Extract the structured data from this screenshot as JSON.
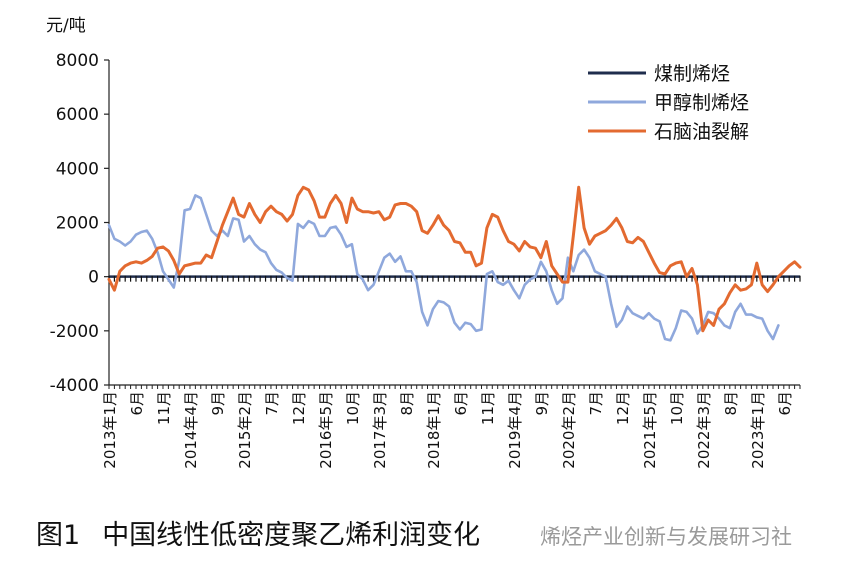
{
  "chart_data": {
    "type": "line",
    "unit_label": "元/吨",
    "ylim": [
      -4000,
      8000
    ],
    "y_ticks": [
      "8000",
      "6000",
      "4000",
      "2000",
      "0",
      "-2000",
      "-4000"
    ],
    "y_tick_values": [
      8000,
      6000,
      4000,
      2000,
      0,
      -2000,
      -4000
    ],
    "x_range_months": [
      0,
      128
    ],
    "x_ticks": [
      {
        "m": 0,
        "label": "2013年1月"
      },
      {
        "m": 5,
        "label": "6月"
      },
      {
        "m": 10,
        "label": "11月"
      },
      {
        "m": 15,
        "label": "2014年4月"
      },
      {
        "m": 20,
        "label": "9月"
      },
      {
        "m": 25,
        "label": "2015年2月"
      },
      {
        "m": 30,
        "label": "7月"
      },
      {
        "m": 35,
        "label": "12月"
      },
      {
        "m": 40,
        "label": "2016年5月"
      },
      {
        "m": 45,
        "label": "10月"
      },
      {
        "m": 50,
        "label": "2017年3月"
      },
      {
        "m": 55,
        "label": "8月"
      },
      {
        "m": 60,
        "label": "2018年1月"
      },
      {
        "m": 65,
        "label": "6月"
      },
      {
        "m": 70,
        "label": "11月"
      },
      {
        "m": 75,
        "label": "2019年4月"
      },
      {
        "m": 80,
        "label": "9月"
      },
      {
        "m": 85,
        "label": "2020年2月"
      },
      {
        "m": 90,
        "label": "7月"
      },
      {
        "m": 95,
        "label": "12月"
      },
      {
        "m": 100,
        "label": "2021年5月"
      },
      {
        "m": 105,
        "label": "10月"
      },
      {
        "m": 110,
        "label": "2022年3月"
      },
      {
        "m": 115,
        "label": "8月"
      },
      {
        "m": 120,
        "label": "2023年1月"
      },
      {
        "m": 125,
        "label": "6月"
      }
    ],
    "legend_position": "top-right",
    "series": [
      {
        "name": "煤制烯烃",
        "color": "#1f2d4d",
        "points": [
          [
            0,
            0
          ],
          [
            128,
            0
          ]
        ]
      },
      {
        "name": "甲醇制烯烃",
        "color": "#8fa8dc",
        "points": [
          [
            0,
            1900
          ],
          [
            1,
            1400
          ],
          [
            2,
            1300
          ],
          [
            3,
            1150
          ],
          [
            4,
            1300
          ],
          [
            5,
            1550
          ],
          [
            6,
            1650
          ],
          [
            7,
            1700
          ],
          [
            8,
            1400
          ],
          [
            9,
            900
          ],
          [
            10,
            200
          ],
          [
            11,
            -100
          ],
          [
            12,
            -400
          ],
          [
            13,
            600
          ],
          [
            14,
            2450
          ],
          [
            15,
            2500
          ],
          [
            16,
            3000
          ],
          [
            17,
            2900
          ],
          [
            18,
            2300
          ],
          [
            19,
            1700
          ],
          [
            20,
            1500
          ],
          [
            21,
            1700
          ],
          [
            22,
            1500
          ],
          [
            23,
            2150
          ],
          [
            24,
            2100
          ],
          [
            25,
            1300
          ],
          [
            26,
            1500
          ],
          [
            27,
            1200
          ],
          [
            28,
            1000
          ],
          [
            29,
            900
          ],
          [
            30,
            500
          ],
          [
            31,
            250
          ],
          [
            32,
            150
          ],
          [
            33,
            -50
          ],
          [
            34,
            -150
          ],
          [
            35,
            1950
          ],
          [
            36,
            1800
          ],
          [
            37,
            2050
          ],
          [
            38,
            1950
          ],
          [
            39,
            1500
          ],
          [
            40,
            1500
          ],
          [
            41,
            1800
          ],
          [
            42,
            1850
          ],
          [
            43,
            1550
          ],
          [
            44,
            1100
          ],
          [
            45,
            1200
          ],
          [
            46,
            100
          ],
          [
            47,
            -100
          ],
          [
            48,
            -500
          ],
          [
            49,
            -300
          ],
          [
            50,
            200
          ],
          [
            51,
            700
          ],
          [
            52,
            850
          ],
          [
            53,
            550
          ],
          [
            54,
            750
          ],
          [
            55,
            200
          ],
          [
            56,
            200
          ],
          [
            57,
            -200
          ],
          [
            58,
            -1300
          ],
          [
            59,
            -1800
          ],
          [
            60,
            -1200
          ],
          [
            61,
            -900
          ],
          [
            62,
            -950
          ],
          [
            63,
            -1100
          ],
          [
            64,
            -1700
          ],
          [
            65,
            -1950
          ],
          [
            66,
            -1700
          ],
          [
            67,
            -1750
          ],
          [
            68,
            -2000
          ],
          [
            69,
            -1950
          ],
          [
            70,
            100
          ],
          [
            71,
            200
          ],
          [
            72,
            -200
          ],
          [
            73,
            -300
          ],
          [
            74,
            -150
          ],
          [
            75,
            -500
          ],
          [
            76,
            -800
          ],
          [
            77,
            -300
          ],
          [
            78,
            -100
          ],
          [
            79,
            0
          ],
          [
            80,
            550
          ],
          [
            81,
            200
          ],
          [
            82,
            -500
          ],
          [
            83,
            -1000
          ],
          [
            84,
            -800
          ],
          [
            85,
            700
          ],
          [
            86,
            200
          ],
          [
            87,
            800
          ],
          [
            88,
            1000
          ],
          [
            89,
            700
          ],
          [
            90,
            200
          ],
          [
            91,
            100
          ],
          [
            92,
            0
          ],
          [
            93,
            -1000
          ],
          [
            94,
            -1850
          ],
          [
            95,
            -1600
          ],
          [
            96,
            -1100
          ],
          [
            97,
            -1350
          ],
          [
            98,
            -1450
          ],
          [
            99,
            -1550
          ],
          [
            100,
            -1350
          ],
          [
            101,
            -1550
          ],
          [
            102,
            -1650
          ],
          [
            103,
            -2300
          ],
          [
            104,
            -2350
          ],
          [
            105,
            -1900
          ],
          [
            106,
            -1250
          ],
          [
            107,
            -1300
          ],
          [
            108,
            -1550
          ],
          [
            109,
            -2100
          ],
          [
            110,
            -1800
          ],
          [
            111,
            -1300
          ],
          [
            112,
            -1350
          ],
          [
            113,
            -1550
          ],
          [
            114,
            -1800
          ],
          [
            115,
            -1900
          ],
          [
            116,
            -1300
          ],
          [
            117,
            -1000
          ],
          [
            118,
            -1400
          ],
          [
            119,
            -1400
          ],
          [
            120,
            -1500
          ],
          [
            121,
            -1550
          ],
          [
            122,
            -2000
          ],
          [
            123,
            -2300
          ],
          [
            124,
            -1800
          ]
        ]
      },
      {
        "name": "石脑油裂解",
        "color": "#e36a30",
        "points": [
          [
            0,
            -100
          ],
          [
            1,
            -500
          ],
          [
            2,
            200
          ],
          [
            3,
            400
          ],
          [
            4,
            500
          ],
          [
            5,
            550
          ],
          [
            6,
            500
          ],
          [
            7,
            600
          ],
          [
            8,
            750
          ],
          [
            9,
            1050
          ],
          [
            10,
            1100
          ],
          [
            11,
            950
          ],
          [
            12,
            600
          ],
          [
            13,
            100
          ],
          [
            14,
            400
          ],
          [
            15,
            450
          ],
          [
            16,
            500
          ],
          [
            17,
            500
          ],
          [
            18,
            800
          ],
          [
            19,
            700
          ],
          [
            20,
            1300
          ],
          [
            21,
            1900
          ],
          [
            22,
            2400
          ],
          [
            23,
            2900
          ],
          [
            24,
            2300
          ],
          [
            25,
            2200
          ],
          [
            26,
            2700
          ],
          [
            27,
            2300
          ],
          [
            28,
            2000
          ],
          [
            29,
            2400
          ],
          [
            30,
            2600
          ],
          [
            31,
            2400
          ],
          [
            32,
            2300
          ],
          [
            33,
            2050
          ],
          [
            34,
            2300
          ],
          [
            35,
            3000
          ],
          [
            36,
            3300
          ],
          [
            37,
            3200
          ],
          [
            38,
            2800
          ],
          [
            39,
            2200
          ],
          [
            40,
            2200
          ],
          [
            41,
            2700
          ],
          [
            42,
            3000
          ],
          [
            43,
            2700
          ],
          [
            44,
            2000
          ],
          [
            45,
            2900
          ],
          [
            46,
            2500
          ],
          [
            47,
            2400
          ],
          [
            48,
            2400
          ],
          [
            49,
            2350
          ],
          [
            50,
            2400
          ],
          [
            51,
            2100
          ],
          [
            52,
            2200
          ],
          [
            53,
            2650
          ],
          [
            54,
            2700
          ],
          [
            55,
            2700
          ],
          [
            56,
            2600
          ],
          [
            57,
            2400
          ],
          [
            58,
            1700
          ],
          [
            59,
            1600
          ],
          [
            60,
            1900
          ],
          [
            61,
            2250
          ],
          [
            62,
            1900
          ],
          [
            63,
            1700
          ],
          [
            64,
            1300
          ],
          [
            65,
            1250
          ],
          [
            66,
            900
          ],
          [
            67,
            900
          ],
          [
            68,
            400
          ],
          [
            69,
            500
          ],
          [
            70,
            1800
          ],
          [
            71,
            2300
          ],
          [
            72,
            2200
          ],
          [
            73,
            1700
          ],
          [
            74,
            1300
          ],
          [
            75,
            1200
          ],
          [
            76,
            950
          ],
          [
            77,
            1300
          ],
          [
            78,
            1100
          ],
          [
            79,
            1050
          ],
          [
            80,
            700
          ],
          [
            81,
            1300
          ],
          [
            82,
            400
          ],
          [
            83,
            100
          ],
          [
            84,
            -200
          ],
          [
            85,
            -200
          ],
          [
            86,
            1500
          ],
          [
            87,
            3300
          ],
          [
            88,
            1800
          ],
          [
            89,
            1200
          ],
          [
            90,
            1500
          ],
          [
            91,
            1600
          ],
          [
            92,
            1700
          ],
          [
            93,
            1900
          ],
          [
            94,
            2150
          ],
          [
            95,
            1800
          ],
          [
            96,
            1300
          ],
          [
            97,
            1250
          ],
          [
            98,
            1450
          ],
          [
            99,
            1300
          ],
          [
            100,
            900
          ],
          [
            101,
            500
          ],
          [
            102,
            150
          ],
          [
            103,
            100
          ],
          [
            104,
            400
          ],
          [
            105,
            500
          ],
          [
            106,
            550
          ],
          [
            107,
            0
          ],
          [
            108,
            300
          ],
          [
            109,
            -300
          ],
          [
            110,
            -2000
          ],
          [
            111,
            -1600
          ],
          [
            112,
            -1800
          ],
          [
            113,
            -1200
          ],
          [
            114,
            -1000
          ],
          [
            115,
            -600
          ],
          [
            116,
            -300
          ],
          [
            117,
            -500
          ],
          [
            118,
            -450
          ],
          [
            119,
            -300
          ],
          [
            120,
            500
          ],
          [
            121,
            -300
          ],
          [
            122,
            -550
          ],
          [
            123,
            -300
          ],
          [
            124,
            0
          ],
          [
            125,
            200
          ],
          [
            126,
            400
          ],
          [
            127,
            550
          ],
          [
            128,
            350
          ]
        ]
      }
    ]
  },
  "caption": {
    "figure_no": "图1",
    "title": "中国线性低密度聚乙烯利润变化"
  },
  "watermark": "烯烃产业创新与发展研习社"
}
